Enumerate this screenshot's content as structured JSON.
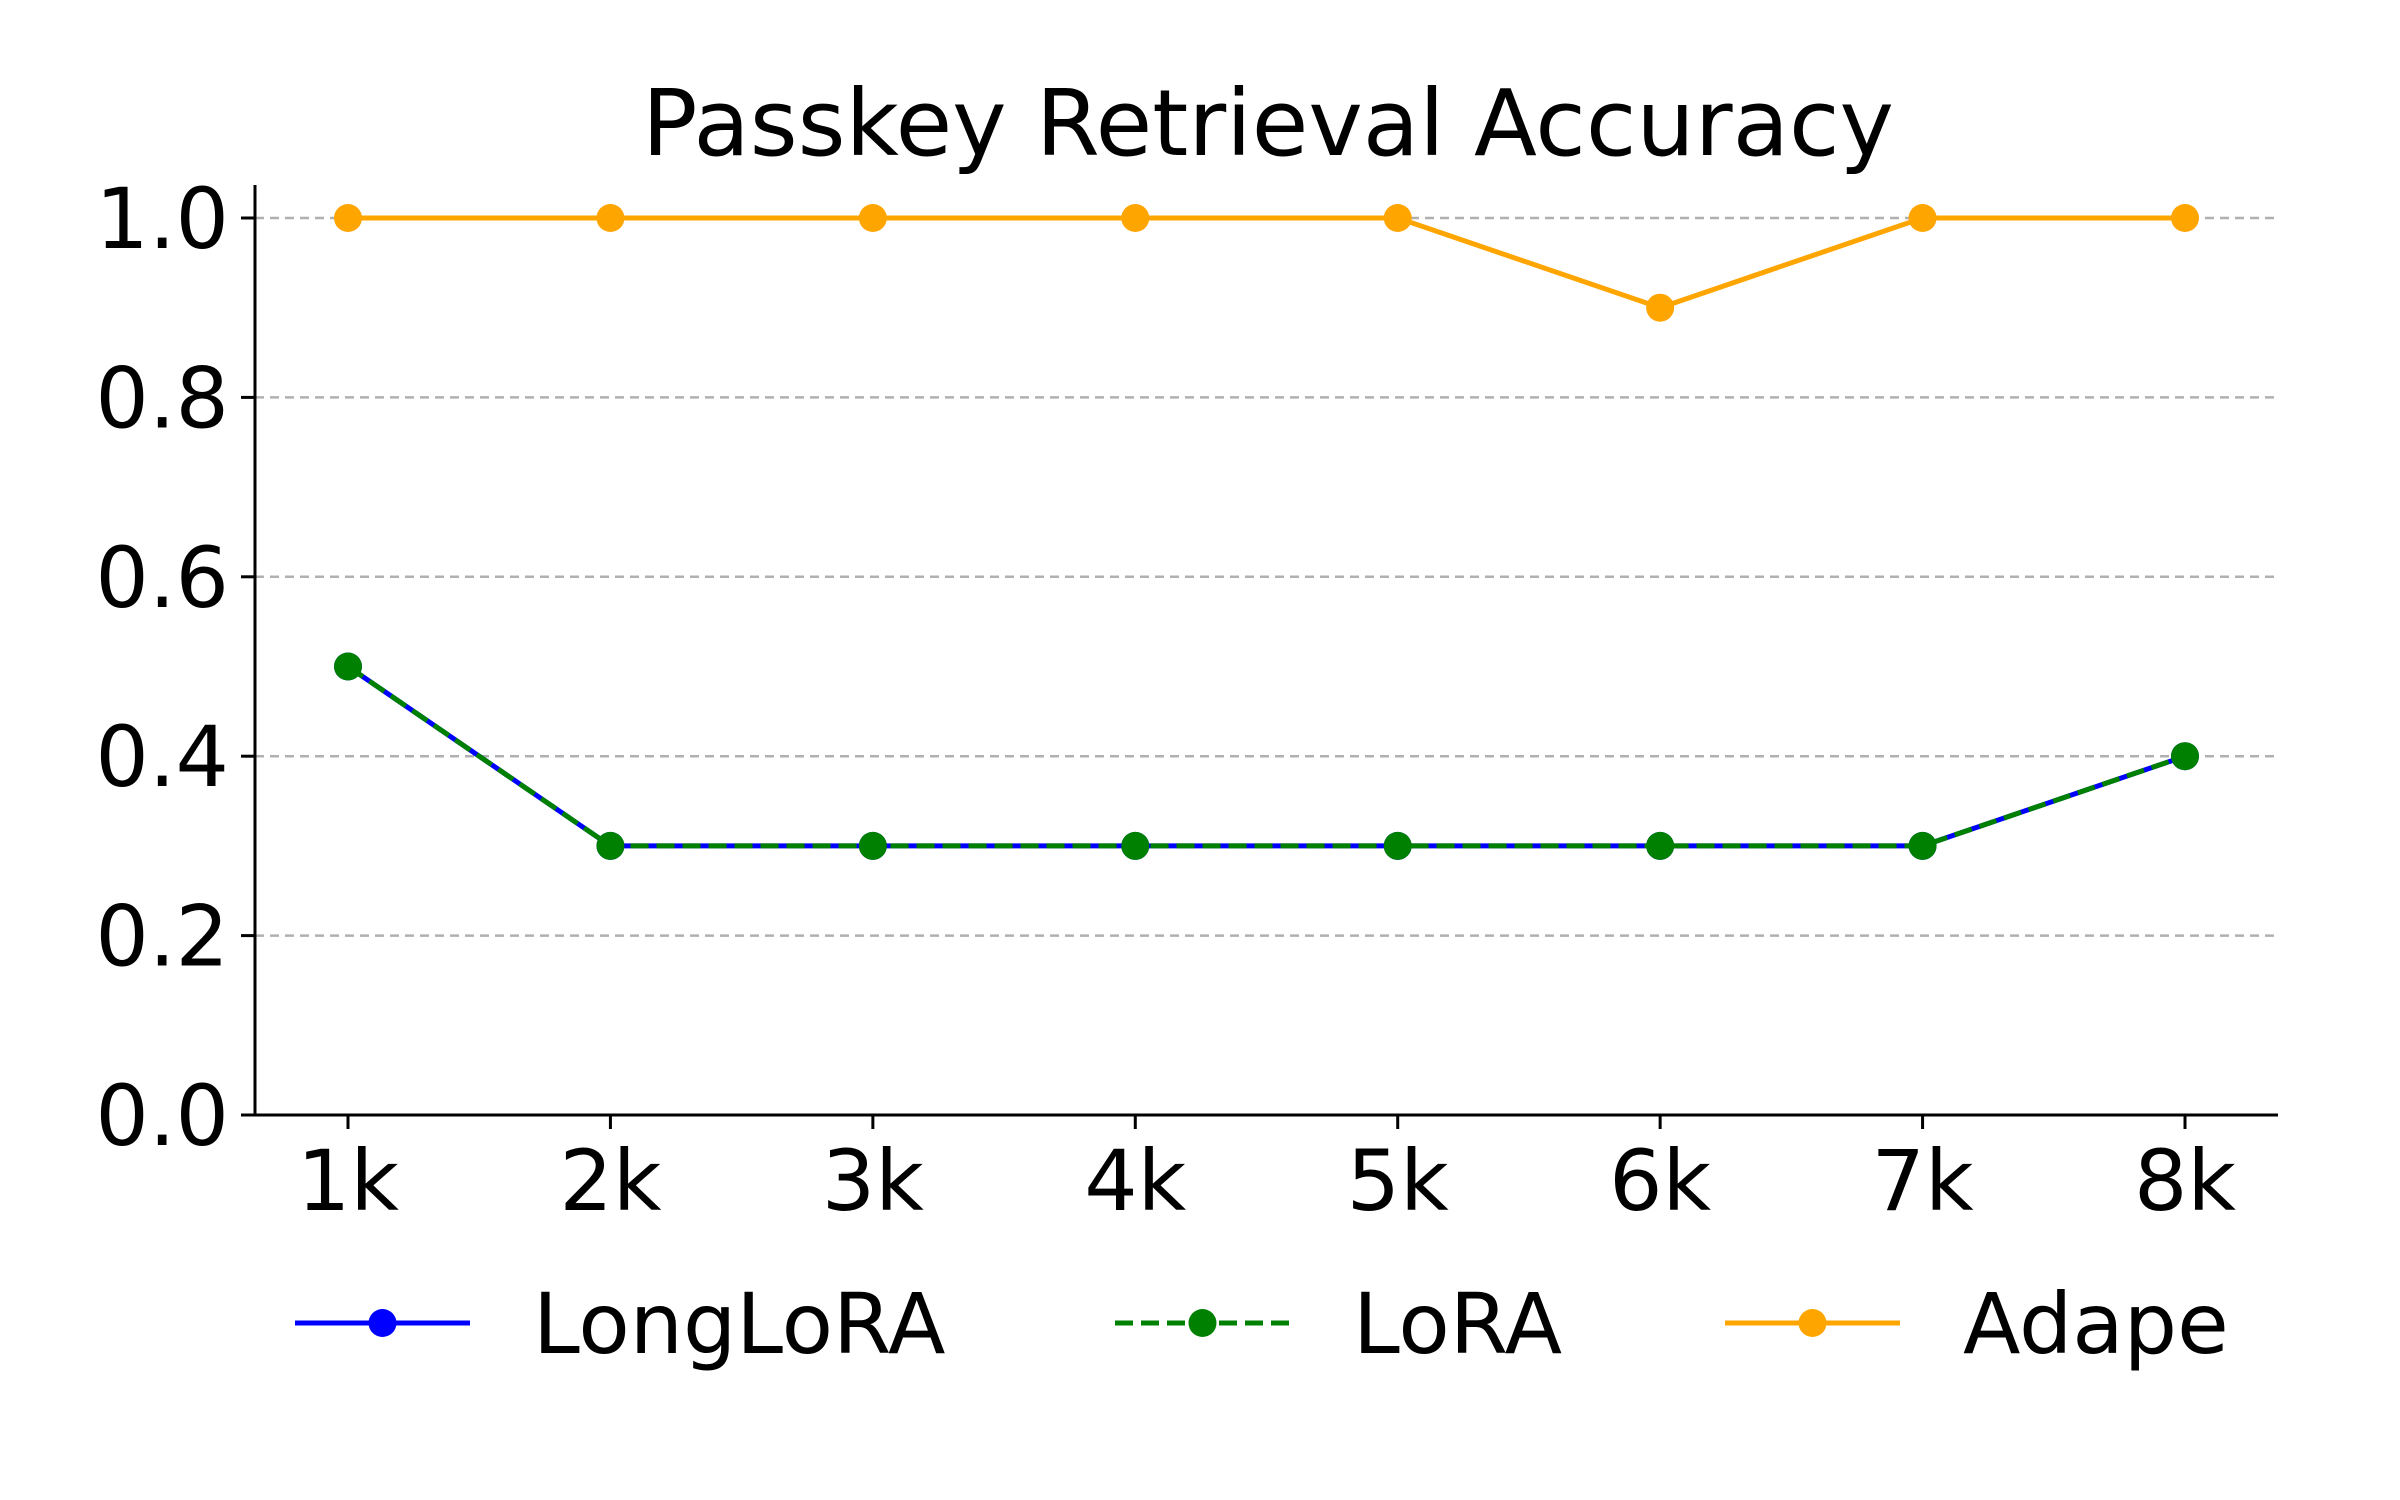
{
  "chart_data": {
    "type": "line",
    "title": "Passkey Retrieval Accuracy",
    "xlabel": "",
    "ylabel": "",
    "categories": [
      "1k",
      "2k",
      "3k",
      "4k",
      "5k",
      "6k",
      "7k",
      "8k"
    ],
    "ylim": [
      0.0,
      1.0
    ],
    "yticks": [
      "0.0",
      "0.2",
      "0.4",
      "0.6",
      "0.8",
      "1.0"
    ],
    "grid": "horizontal dashed",
    "legend_position": "bottom",
    "series": [
      {
        "name": "LongLoRA",
        "color": "#0000ff",
        "line_style": "solid",
        "marker": "circle",
        "values": [
          0.5,
          0.3,
          0.3,
          0.3,
          0.3,
          0.3,
          0.3,
          0.4
        ]
      },
      {
        "name": "LoRA",
        "color": "#008000",
        "line_style": "dashed",
        "marker": "circle",
        "values": [
          0.5,
          0.3,
          0.3,
          0.3,
          0.3,
          0.3,
          0.3,
          0.4
        ]
      },
      {
        "name": "Adape",
        "color": "#ffa500",
        "line_style": "solid",
        "marker": "circle",
        "values": [
          1.0,
          1.0,
          1.0,
          1.0,
          1.0,
          0.9,
          1.0,
          1.0
        ]
      }
    ]
  }
}
